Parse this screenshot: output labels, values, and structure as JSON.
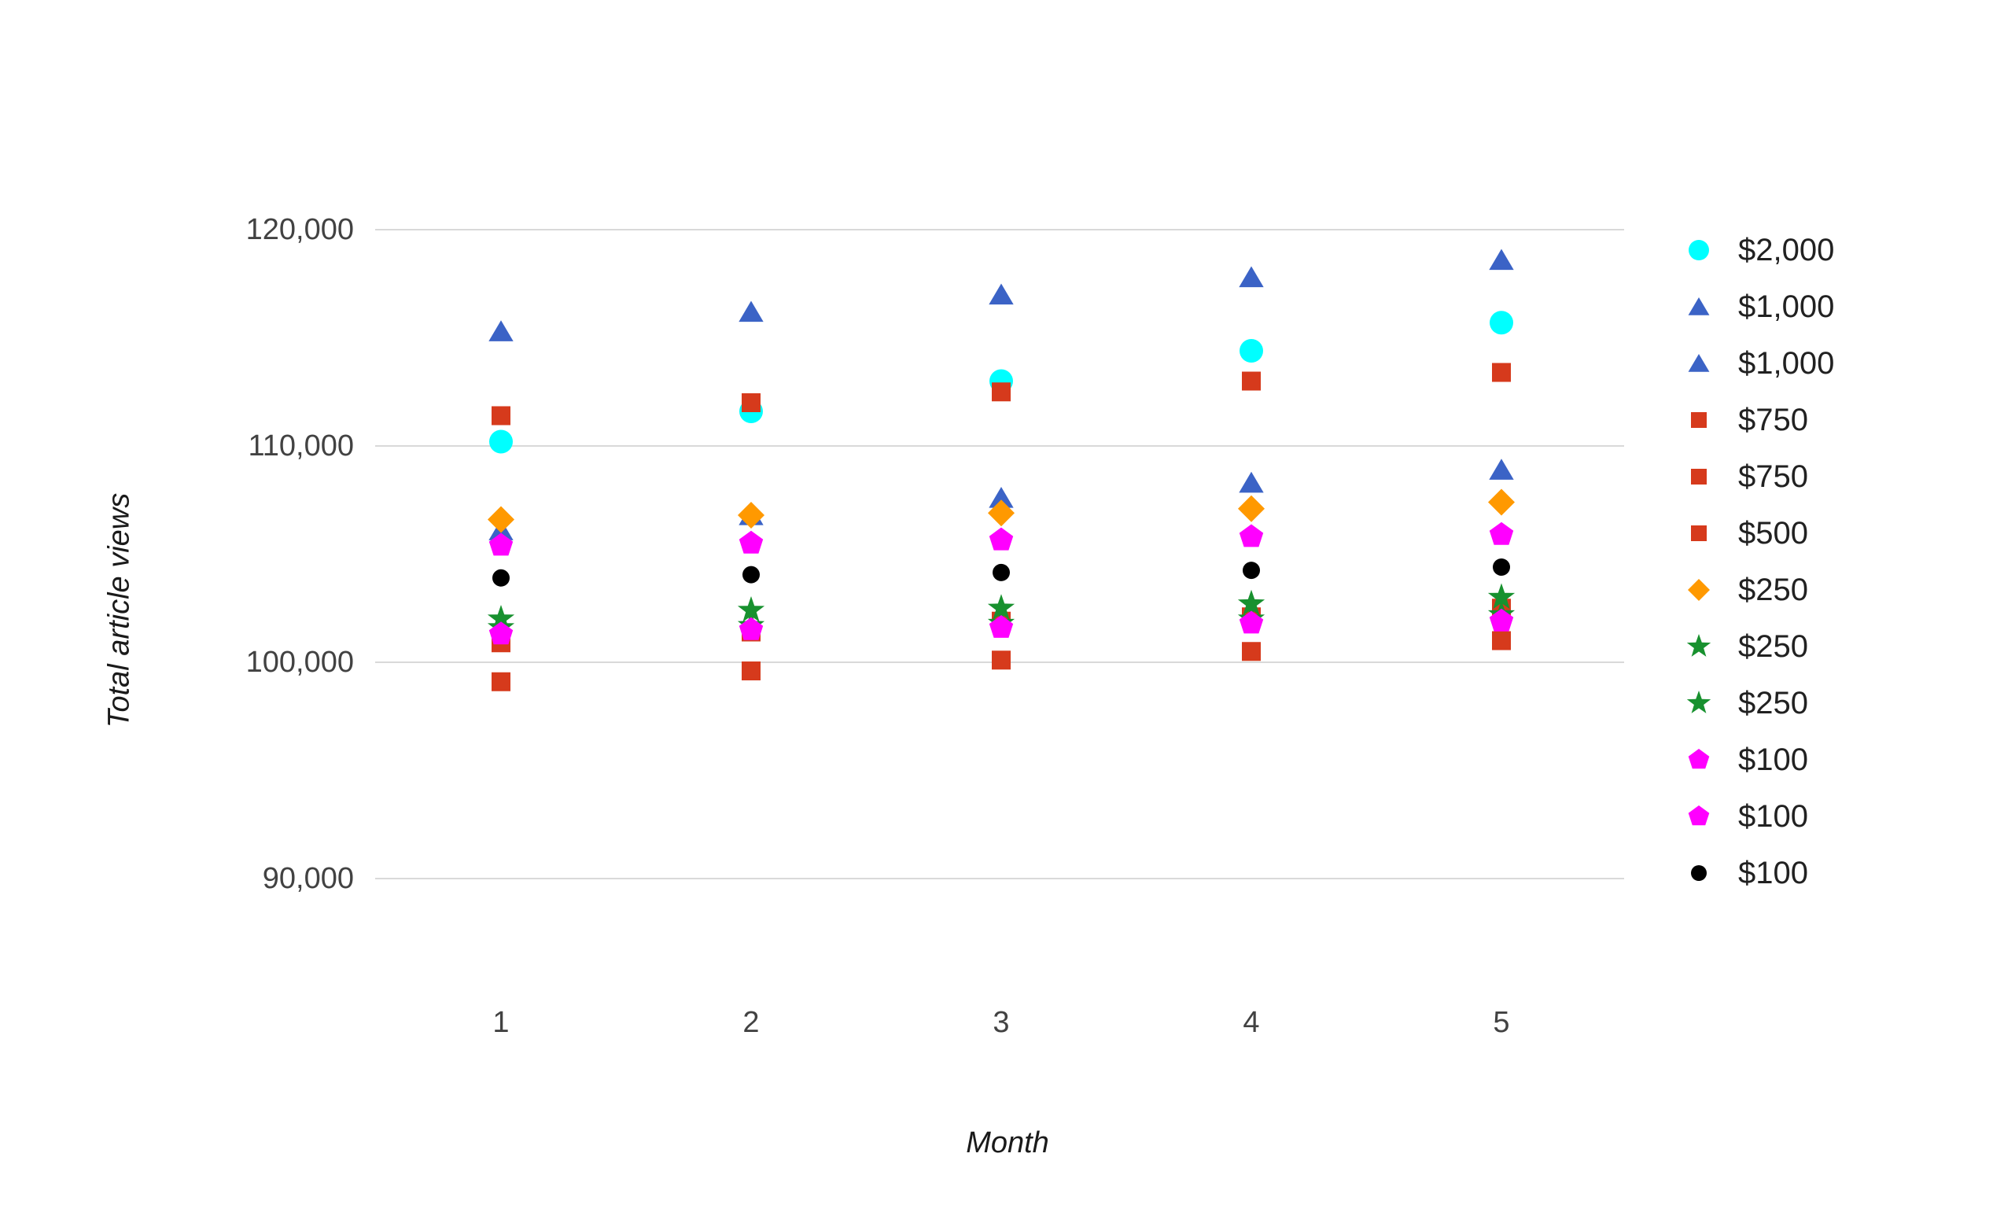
{
  "chart_data": {
    "type": "scatter",
    "title": "",
    "xlabel": "Month",
    "ylabel": "Total article views",
    "x": [
      1,
      2,
      3,
      4,
      5
    ],
    "x_tick_labels": [
      "1",
      "2",
      "3",
      "4",
      "5"
    ],
    "y_tick_labels": [
      "90,000",
      "100,000",
      "110,000",
      "120,000"
    ],
    "y_gridlines": [
      90000,
      100000,
      110000,
      120000
    ],
    "ylim": [
      87000,
      121500
    ],
    "grid": "horizontal-only",
    "legend_position": "right",
    "colors": {
      "cyan": "#00FFFF",
      "blue": "#3B63C6",
      "red": "#D63A1C",
      "orange": "#FF9900",
      "green": "#18912F",
      "magenta": "#FF00FF",
      "black": "#000000",
      "gridline": "#D9D9D9",
      "tick_text": "#424242",
      "legend_text": "#212121"
    },
    "series": [
      {
        "name": "$2,000",
        "marker": "circle-large",
        "color_key": "cyan",
        "values": [
          110200,
          111600,
          113000,
          114400,
          115700
        ]
      },
      {
        "name": "$1,000",
        "marker": "triangle",
        "color_key": "blue",
        "values": [
          115300,
          116200,
          117000,
          117800,
          118600
        ]
      },
      {
        "name": "$1,000",
        "marker": "triangle",
        "color_key": "blue",
        "values": [
          106100,
          106800,
          107600,
          108300,
          108900
        ]
      },
      {
        "name": "$750",
        "marker": "square",
        "color_key": "red",
        "values": [
          111400,
          112000,
          112500,
          113000,
          113400
        ]
      },
      {
        "name": "$750",
        "marker": "square",
        "color_key": "red",
        "values": [
          100900,
          101400,
          101900,
          102100,
          102500
        ]
      },
      {
        "name": "$500",
        "marker": "square",
        "color_key": "red",
        "values": [
          99100,
          99600,
          100100,
          100500,
          101000
        ]
      },
      {
        "name": "$250",
        "marker": "diamond",
        "color_key": "orange",
        "values": [
          106600,
          106800,
          106900,
          107100,
          107400
        ]
      },
      {
        "name": "$250",
        "marker": "star",
        "color_key": "green",
        "values": [
          102000,
          102400,
          102500,
          102700,
          103000
        ]
      },
      {
        "name": "$250",
        "marker": "star",
        "color_key": "green",
        "values": [
          101600,
          101700,
          101800,
          102000,
          102200
        ]
      },
      {
        "name": "$100",
        "marker": "pentagon",
        "color_key": "magenta",
        "values": [
          105400,
          105500,
          105650,
          105800,
          105900
        ]
      },
      {
        "name": "$100",
        "marker": "pentagon",
        "color_key": "magenta",
        "values": [
          101300,
          101500,
          101600,
          101800,
          101900
        ]
      },
      {
        "name": "$100",
        "marker": "circle-small",
        "color_key": "black",
        "values": [
          103900,
          104050,
          104150,
          104250,
          104400
        ]
      }
    ]
  }
}
